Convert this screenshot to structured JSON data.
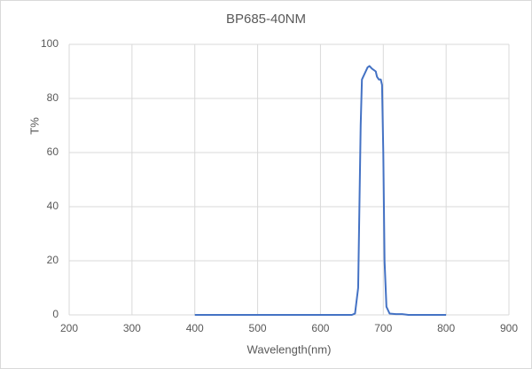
{
  "chart_data": {
    "type": "line",
    "title": "BP685-40NM",
    "x_label": "Wavelength(nm)",
    "y_label": "T%",
    "x": [
      400,
      650,
      655,
      660,
      664,
      666,
      668,
      670,
      675,
      678,
      682,
      688,
      690,
      693,
      696,
      698,
      700,
      702,
      705,
      710,
      720,
      730,
      740,
      800
    ],
    "values": [
      0,
      0,
      0.5,
      10,
      70,
      87,
      88,
      89,
      91.5,
      92,
      91,
      90,
      88,
      87,
      87,
      85,
      60,
      20,
      3,
      0.5,
      0.3,
      0.3,
      0,
      0
    ],
    "color": "#4472c4",
    "xlim": [
      200,
      900
    ],
    "xticks": [
      200,
      300,
      400,
      500,
      600,
      700,
      800,
      900
    ],
    "ylim": [
      0,
      100
    ],
    "yticks": [
      0,
      20,
      40,
      60,
      80,
      100
    ],
    "grid": true
  }
}
